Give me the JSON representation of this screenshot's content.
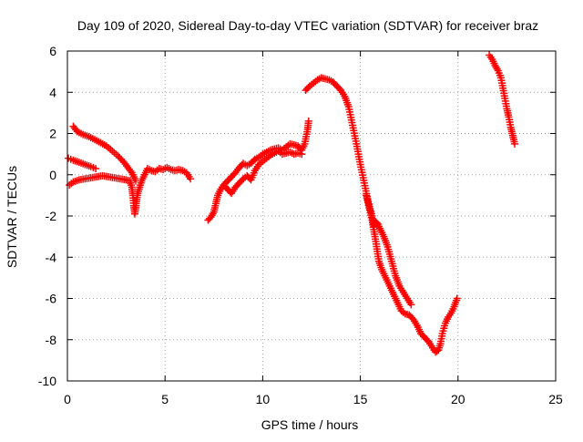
{
  "chart_data": {
    "type": "scatter",
    "title": "Day 109 of 2020, Sidereal Day-to-day VTEC variation (SDTVAR) for receiver braz",
    "xlabel": "GPS time / hours",
    "ylabel": "SDTVAR / TECUs",
    "xlim": [
      0,
      25
    ],
    "ylim": [
      -10,
      6
    ],
    "xticks": [
      0,
      5,
      10,
      15,
      20,
      25
    ],
    "yticks": [
      -10,
      -8,
      -6,
      -4,
      -2,
      0,
      2,
      4,
      6
    ],
    "grid": true,
    "marker": "plus",
    "marker_color": "#ff0000",
    "series": [
      {
        "points": [
          [
            0.3,
            2.35
          ],
          [
            0.5,
            2.1
          ],
          [
            0.8,
            1.95
          ],
          [
            1.1,
            1.85
          ],
          [
            1.4,
            1.7
          ],
          [
            1.7,
            1.55
          ],
          [
            2.0,
            1.4
          ],
          [
            2.3,
            1.15
          ],
          [
            2.6,
            0.9
          ],
          [
            2.9,
            0.6
          ],
          [
            3.1,
            0.35
          ],
          [
            3.3,
            0.1
          ],
          [
            3.4,
            -0.1
          ],
          [
            3.5,
            -0.3
          ]
        ]
      },
      {
        "points": [
          [
            0.05,
            0.8
          ],
          [
            0.3,
            0.7
          ],
          [
            0.6,
            0.6
          ],
          [
            0.9,
            0.5
          ],
          [
            1.2,
            0.4
          ],
          [
            1.45,
            0.3
          ]
        ]
      },
      {
        "points": [
          [
            0.1,
            -0.5
          ],
          [
            0.3,
            -0.35
          ],
          [
            0.6,
            -0.25
          ],
          [
            0.9,
            -0.2
          ],
          [
            1.2,
            -0.15
          ],
          [
            1.5,
            -0.1
          ],
          [
            1.8,
            -0.05
          ],
          [
            2.1,
            -0.1
          ],
          [
            2.4,
            -0.15
          ],
          [
            2.7,
            -0.2
          ],
          [
            3.0,
            -0.25
          ],
          [
            3.2,
            -0.3
          ],
          [
            3.3,
            -0.6
          ],
          [
            3.35,
            -1.0
          ],
          [
            3.4,
            -1.5
          ],
          [
            3.45,
            -1.9
          ],
          [
            3.5,
            -1.6
          ],
          [
            3.55,
            -1.2
          ],
          [
            3.6,
            -0.9
          ],
          [
            3.7,
            -0.6
          ],
          [
            3.8,
            -0.3
          ],
          [
            3.9,
            -0.1
          ],
          [
            4.0,
            0.1
          ],
          [
            4.1,
            0.3
          ],
          [
            4.3,
            0.2
          ],
          [
            4.5,
            0.15
          ],
          [
            4.7,
            0.3
          ],
          [
            4.9,
            0.25
          ],
          [
            5.1,
            0.35
          ],
          [
            5.3,
            0.25
          ],
          [
            5.5,
            0.2
          ],
          [
            5.7,
            0.25
          ],
          [
            5.9,
            0.2
          ],
          [
            6.1,
            0.1
          ],
          [
            6.3,
            -0.2
          ]
        ]
      },
      {
        "points": [
          [
            7.2,
            -2.2
          ],
          [
            7.35,
            -2.05
          ],
          [
            7.5,
            -1.8
          ],
          [
            7.6,
            -1.4
          ],
          [
            7.7,
            -1.0
          ],
          [
            7.85,
            -0.7
          ],
          [
            8.0,
            -0.5
          ],
          [
            8.2,
            -0.3
          ],
          [
            8.4,
            -0.1
          ],
          [
            8.6,
            0.1
          ],
          [
            8.8,
            0.35
          ],
          [
            9.0,
            0.55
          ],
          [
            9.2,
            0.45
          ],
          [
            9.4,
            0.55
          ],
          [
            9.6,
            0.75
          ],
          [
            9.8,
            0.85
          ],
          [
            10.0,
            1.0
          ],
          [
            10.2,
            1.1
          ],
          [
            10.4,
            1.2
          ],
          [
            10.6,
            1.25
          ],
          [
            10.8,
            1.3
          ],
          [
            11.0,
            1.2
          ],
          [
            11.2,
            1.35
          ],
          [
            11.4,
            1.5
          ],
          [
            11.6,
            1.45
          ],
          [
            11.8,
            1.4
          ],
          [
            12.0,
            1.2
          ],
          [
            12.15,
            1.5
          ],
          [
            12.3,
            2.2
          ],
          [
            12.35,
            2.6
          ]
        ]
      },
      {
        "points": [
          [
            8.0,
            -0.5
          ],
          [
            8.2,
            -0.7
          ],
          [
            8.4,
            -0.9
          ],
          [
            8.6,
            -0.6
          ],
          [
            8.8,
            -0.4
          ],
          [
            9.0,
            -0.2
          ],
          [
            9.2,
            -0.05
          ],
          [
            9.4,
            -0.25
          ],
          [
            9.6,
            0.2
          ],
          [
            9.8,
            0.5
          ],
          [
            10.0,
            0.65
          ],
          [
            10.2,
            0.8
          ],
          [
            10.4,
            0.95
          ],
          [
            10.6,
            1.05
          ],
          [
            10.8,
            1.15
          ],
          [
            11.0,
            1.0
          ],
          [
            11.2,
            1.05
          ],
          [
            11.4,
            1.1
          ],
          [
            11.6,
            1.0
          ],
          [
            11.8,
            1.05
          ],
          [
            12.0,
            1.0
          ]
        ]
      },
      {
        "points": [
          [
            12.2,
            4.1
          ],
          [
            12.4,
            4.3
          ],
          [
            12.6,
            4.45
          ],
          [
            12.8,
            4.6
          ],
          [
            13.0,
            4.7
          ],
          [
            13.2,
            4.65
          ],
          [
            13.4,
            4.6
          ],
          [
            13.6,
            4.5
          ],
          [
            13.8,
            4.3
          ],
          [
            14.0,
            4.1
          ],
          [
            14.2,
            3.8
          ],
          [
            14.4,
            3.3
          ],
          [
            14.6,
            2.4
          ],
          [
            14.8,
            1.5
          ],
          [
            15.0,
            0.5
          ],
          [
            15.2,
            -0.4
          ],
          [
            15.4,
            -1.3
          ],
          [
            15.6,
            -2.0
          ],
          [
            15.7,
            -2.5
          ],
          [
            15.8,
            -2.3
          ],
          [
            15.9,
            -2.4
          ],
          [
            16.0,
            -2.6
          ],
          [
            16.2,
            -3.0
          ],
          [
            16.4,
            -3.5
          ],
          [
            16.6,
            -4.2
          ],
          [
            16.8,
            -4.9
          ],
          [
            17.0,
            -5.4
          ],
          [
            17.2,
            -5.7
          ],
          [
            17.4,
            -6.0
          ],
          [
            17.6,
            -6.3
          ]
        ]
      },
      {
        "points": [
          [
            15.3,
            -1.0
          ],
          [
            15.45,
            -1.6
          ],
          [
            15.6,
            -2.2
          ],
          [
            15.75,
            -3.0
          ],
          [
            15.85,
            -3.6
          ],
          [
            15.95,
            -4.2
          ],
          [
            16.1,
            -4.6
          ],
          [
            16.3,
            -5.0
          ],
          [
            16.5,
            -5.4
          ],
          [
            16.7,
            -5.8
          ],
          [
            16.9,
            -6.2
          ],
          [
            17.1,
            -6.6
          ],
          [
            17.3,
            -6.75
          ],
          [
            17.5,
            -6.8
          ],
          [
            17.7,
            -7.0
          ],
          [
            17.9,
            -7.3
          ],
          [
            18.1,
            -7.7
          ],
          [
            18.3,
            -7.9
          ],
          [
            18.5,
            -8.1
          ],
          [
            18.7,
            -8.4
          ],
          [
            18.85,
            -8.6
          ],
          [
            19.0,
            -8.5
          ],
          [
            19.1,
            -8.2
          ],
          [
            19.2,
            -7.7
          ],
          [
            19.35,
            -7.2
          ],
          [
            19.5,
            -6.9
          ],
          [
            19.65,
            -6.7
          ],
          [
            19.8,
            -6.4
          ],
          [
            19.95,
            -6.0
          ]
        ]
      },
      {
        "points": [
          [
            21.6,
            5.8
          ],
          [
            21.75,
            5.6
          ],
          [
            21.9,
            5.3
          ],
          [
            22.05,
            5.05
          ],
          [
            22.2,
            4.7
          ],
          [
            22.3,
            4.2
          ],
          [
            22.4,
            3.7
          ],
          [
            22.5,
            3.2
          ],
          [
            22.6,
            2.8
          ],
          [
            22.7,
            2.3
          ],
          [
            22.8,
            1.9
          ],
          [
            22.9,
            1.5
          ]
        ]
      }
    ]
  }
}
